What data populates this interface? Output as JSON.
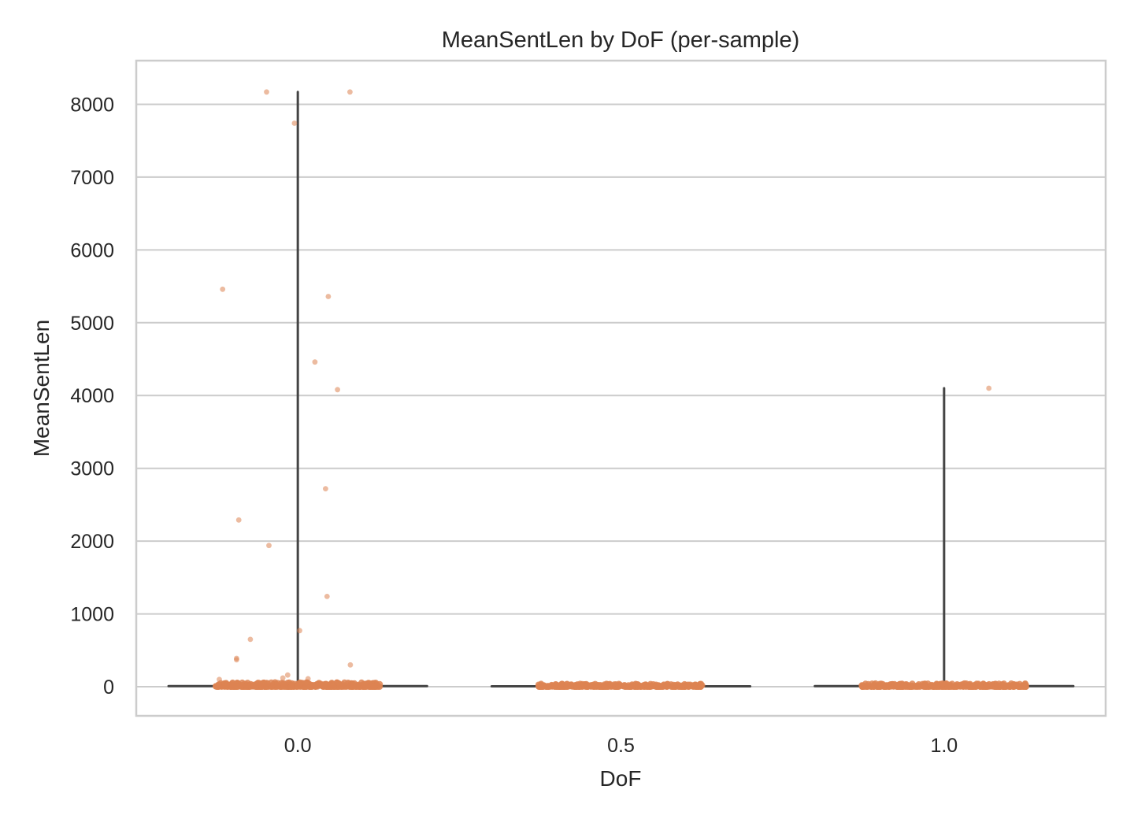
{
  "chart_data": {
    "type": "scatter",
    "subtype": "box-with-jittered-strip",
    "title": "MeanSentLen by DoF (per-sample)",
    "xlabel": "DoF",
    "ylabel": "MeanSentLen",
    "categories": [
      "0.0",
      "0.5",
      "1.0"
    ],
    "ylim": [
      -400,
      8600
    ],
    "yticks": [
      0,
      1000,
      2000,
      3000,
      4000,
      5000,
      6000,
      7000,
      8000
    ],
    "grid": "horizontal",
    "legend": "none",
    "colors": {
      "points": "#dd8452",
      "whisker": "#444444",
      "grid": "#cccccc"
    },
    "box": [
      {
        "category": "0.0",
        "whisker_low": 0,
        "q1": 0,
        "median": 8,
        "q3": 18,
        "whisker_high": 8170
      },
      {
        "category": "0.5",
        "whisker_low": 0,
        "q1": 2,
        "median": 6,
        "q3": 10,
        "whisker_high": 30
      },
      {
        "category": "1.0",
        "whisker_low": 0,
        "q1": 2,
        "median": 8,
        "q3": 16,
        "whisker_high": 4100
      }
    ],
    "outliers": [
      {
        "category": "0.0",
        "y": 8170
      },
      {
        "category": "0.0",
        "y": 8170
      },
      {
        "category": "0.0",
        "y": 7740
      },
      {
        "category": "0.0",
        "y": 5460
      },
      {
        "category": "0.0",
        "y": 5360
      },
      {
        "category": "0.0",
        "y": 4460
      },
      {
        "category": "0.0",
        "y": 4080
      },
      {
        "category": "0.0",
        "y": 2720
      },
      {
        "category": "0.0",
        "y": 2290
      },
      {
        "category": "0.0",
        "y": 1940
      },
      {
        "category": "0.0",
        "y": 1240
      },
      {
        "category": "0.0",
        "y": 770
      },
      {
        "category": "0.0",
        "y": 650
      },
      {
        "category": "0.0",
        "y": 390
      },
      {
        "category": "0.0",
        "y": 370
      },
      {
        "category": "0.0",
        "y": 300
      },
      {
        "category": "0.0",
        "y": 160
      },
      {
        "category": "0.0",
        "y": 120
      },
      {
        "category": "0.0",
        "y": 110
      },
      {
        "category": "0.0",
        "y": 100
      },
      {
        "category": "1.0",
        "y": 4100
      }
    ]
  }
}
